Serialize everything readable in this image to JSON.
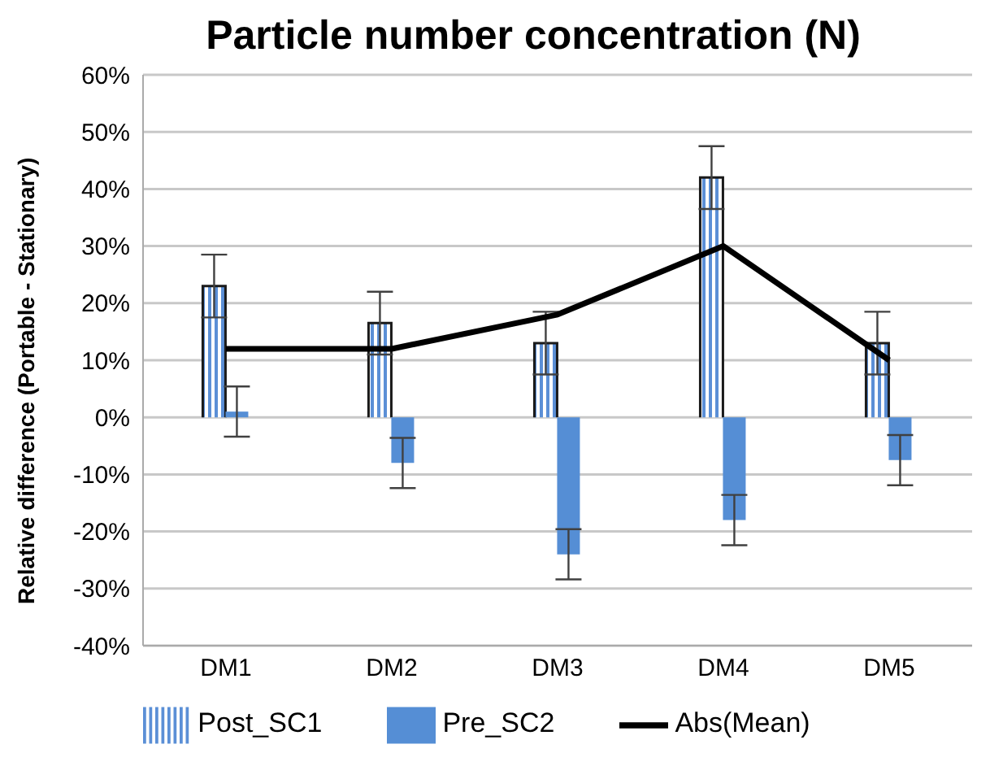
{
  "chart_data": {
    "type": "bar",
    "title": "Particle number concentration (N)",
    "ylabel": "Relative difference (Portable - Stationary)",
    "categories": [
      "DM1",
      "DM2",
      "DM3",
      "DM4",
      "DM5"
    ],
    "series": [
      {
        "name": "Post_SC1",
        "color": "#5b8fd6",
        "values": [
          23,
          16.5,
          13,
          42,
          13
        ],
        "errors": [
          5.5,
          5.5,
          5.5,
          5.5,
          5.5
        ]
      },
      {
        "name": "Pre_SC2",
        "color": "#558ed5",
        "values": [
          1,
          -8,
          -24,
          -18,
          -7.5
        ],
        "errors": [
          4.4,
          4.4,
          4.4,
          4.4,
          4.4
        ]
      },
      {
        "name": "Abs(Mean)",
        "type": "line",
        "color": "#000000",
        "values": [
          12,
          12,
          18,
          30,
          10
        ]
      }
    ],
    "ylim": [
      -40,
      60
    ],
    "yticks": [
      {
        "value": -40,
        "label": "-40%"
      },
      {
        "value": -30,
        "label": "-30%"
      },
      {
        "value": -20,
        "label": "-20%"
      },
      {
        "value": -10,
        "label": "-10%"
      },
      {
        "value": 0,
        "label": "0%"
      },
      {
        "value": 10,
        "label": "10%"
      },
      {
        "value": 20,
        "label": "20%"
      },
      {
        "value": 30,
        "label": "30%"
      },
      {
        "value": 40,
        "label": "40%"
      },
      {
        "value": 50,
        "label": "50%"
      },
      {
        "value": 60,
        "label": "60%"
      }
    ],
    "grid": "y",
    "legend": "bottom",
    "marker": "none",
    "line_style": "solid"
  }
}
